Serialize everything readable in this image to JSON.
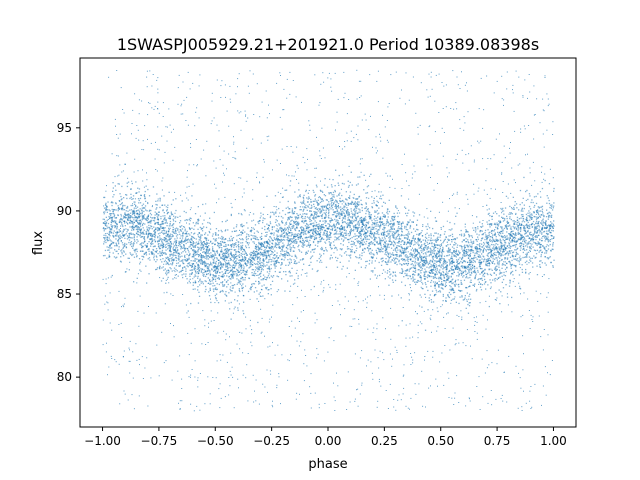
{
  "chart_data": {
    "type": "scatter",
    "title": "1SWASPJ005929.21+201921.0 Period 10389.08398s",
    "xlabel": "phase",
    "ylabel": "flux",
    "xlim": [
      -1.1,
      1.1
    ],
    "ylim": [
      77,
      99.2
    ],
    "xticks": [
      -1.0,
      -0.75,
      -0.5,
      -0.25,
      0.0,
      0.25,
      0.5,
      0.75,
      1.0
    ],
    "xtick_labels": [
      "−1.00",
      "−0.75",
      "−0.50",
      "−0.25",
      "0.00",
      "0.25",
      "0.50",
      "0.75",
      "1.00"
    ],
    "yticks": [
      80,
      85,
      90,
      95
    ],
    "ytick_labels": [
      "80",
      "85",
      "90",
      "95"
    ],
    "grid": false,
    "legend": "none",
    "point_color": "#1f77b4",
    "series": [
      {
        "x_range": [
          -1.0,
          1.0
        ],
        "outlier_y_range": [
          78,
          98.5
        ],
        "band_width": 3.4,
        "trend": {
          "x": [
            -1.0,
            -0.9,
            -0.8,
            -0.7,
            -0.6,
            -0.5,
            -0.45,
            -0.4,
            -0.3,
            -0.2,
            -0.1,
            0.0,
            0.1,
            0.2,
            0.3,
            0.4,
            0.5,
            0.55,
            0.6,
            0.7,
            0.8,
            0.9,
            1.0
          ],
          "y": [
            89.0,
            89.2,
            88.9,
            88.2,
            87.5,
            87.0,
            86.9,
            87.0,
            87.5,
            88.3,
            89.1,
            89.5,
            89.3,
            88.8,
            88.1,
            87.3,
            86.8,
            86.7,
            86.8,
            87.4,
            88.2,
            88.8,
            89.0
          ]
        }
      }
    ]
  }
}
